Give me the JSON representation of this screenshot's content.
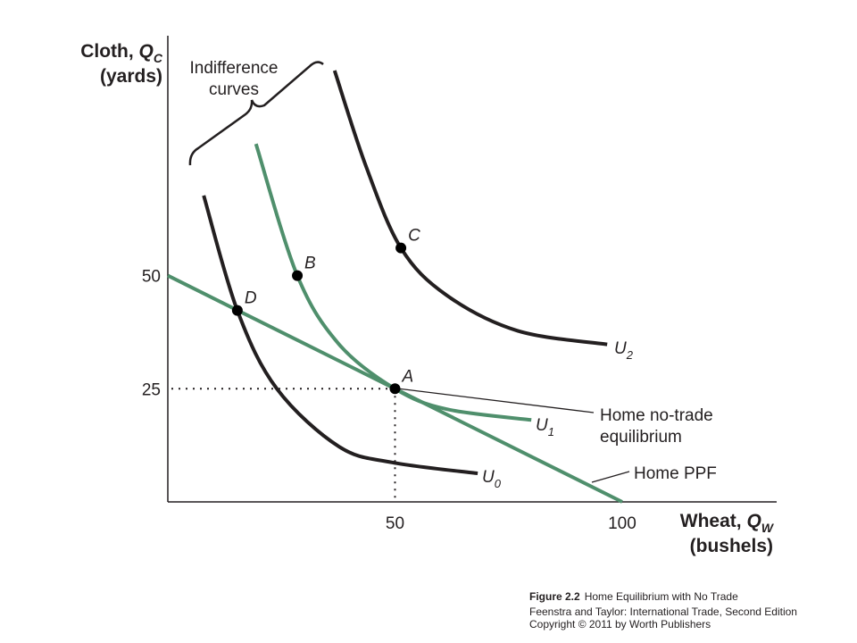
{
  "chart_data": {
    "type": "line",
    "y_label": {
      "text": "Cloth, ",
      "var": "Q",
      "sub": "C",
      "unit": "(yards)"
    },
    "x_label": {
      "text": "Wheat, ",
      "var": "Q",
      "sub": "W",
      "unit": "(bushels)"
    },
    "xlim": [
      0,
      134
    ],
    "ylim": [
      0,
      103
    ],
    "xticks": [
      50,
      100
    ],
    "yticks": [
      25,
      50
    ],
    "series": [
      {
        "main": "U",
        "sub": "0",
        "color": "#231f20",
        "x": [
          7.9,
          15.3,
          24,
          37.7,
          49.5,
          68.2
        ],
        "y": [
          67.7,
          42.3,
          25,
          12.2,
          8.7,
          6.3
        ]
      },
      {
        "main": "U",
        "sub": "1",
        "color": "#4f8f6c",
        "x": [
          19.4,
          28.5,
          37.7,
          50,
          61.3,
          80
        ],
        "y": [
          79.1,
          50,
          34.8,
          25,
          20.5,
          18.1
        ]
      },
      {
        "main": "U",
        "sub": "2",
        "color": "#231f20",
        "x": [
          36.7,
          43.6,
          51.3,
          61.3,
          77,
          96.7
        ],
        "y": [
          95.3,
          74.2,
          56.1,
          45.7,
          37.8,
          34.8
        ]
      },
      {
        "main": "Home PPF",
        "color": "#4f8f6c",
        "x": [
          0,
          100
        ],
        "y": [
          50,
          0
        ]
      }
    ],
    "points": [
      {
        "label": "A",
        "x": 50,
        "y": 25
      },
      {
        "label": "B",
        "x": 28.5,
        "y": 50
      },
      {
        "label": "C",
        "x": 51.3,
        "y": 56.1
      },
      {
        "label": "D",
        "x": 15.3,
        "y": 42.3
      }
    ],
    "annotations": {
      "indifference": [
        "Indifference",
        "curves"
      ],
      "equilibrium": [
        "Home no-trade",
        "equilibrium"
      ]
    },
    "caption": {
      "figure": "Figure 2.2",
      "title": "Home Equilibrium with No Trade",
      "source": "Feenstra and Taylor: International Trade, Second Edition",
      "copyright": "Copyright © 2011 by Worth Publishers"
    }
  }
}
